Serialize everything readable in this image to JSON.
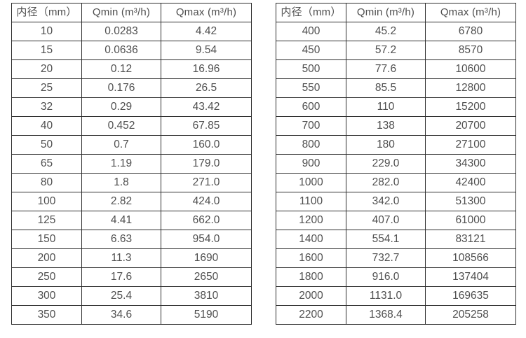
{
  "colors": {
    "border": "#2e2e2e",
    "text": "#4f4f4f",
    "background": "#ffffff"
  },
  "tables": [
    {
      "headers": [
        "内径（mm）",
        "Qmin (m³/h)",
        "Qmax (m³/h)"
      ],
      "rows": [
        [
          "10",
          "0.0283",
          "4.42"
        ],
        [
          "15",
          "0.0636",
          "9.54"
        ],
        [
          "20",
          "0.12",
          "16.96"
        ],
        [
          "25",
          "0.176",
          "26.5"
        ],
        [
          "32",
          "0.29",
          "43.42"
        ],
        [
          "40",
          "0.452",
          "67.85"
        ],
        [
          "50",
          "0.7",
          "160.0"
        ],
        [
          "65",
          "1.19",
          "179.0"
        ],
        [
          "80",
          "1.8",
          "271.0"
        ],
        [
          "100",
          "2.82",
          "424.0"
        ],
        [
          "125",
          "4.41",
          "662.0"
        ],
        [
          "150",
          "6.63",
          "954.0"
        ],
        [
          "200",
          "11.3",
          "1690"
        ],
        [
          "250",
          "17.6",
          "2650"
        ],
        [
          "300",
          "25.4",
          "3810"
        ],
        [
          "350",
          "34.6",
          "5190"
        ]
      ]
    },
    {
      "headers": [
        "内径（mm）",
        "Qmin (m³/h)",
        "Qmax (m³/h)"
      ],
      "rows": [
        [
          "400",
          "45.2",
          "6780"
        ],
        [
          "450",
          "57.2",
          "8570"
        ],
        [
          "500",
          "77.6",
          "10600"
        ],
        [
          "550",
          "85.5",
          "12800"
        ],
        [
          "600",
          "110",
          "15200"
        ],
        [
          "700",
          "138",
          "20700"
        ],
        [
          "800",
          "180",
          "27100"
        ],
        [
          "900",
          "229.0",
          "34300"
        ],
        [
          "1000",
          "282.0",
          "42400"
        ],
        [
          "1100",
          "342.0",
          "51300"
        ],
        [
          "1200",
          "407.0",
          "61000"
        ],
        [
          "1400",
          "554.1",
          "83121"
        ],
        [
          "1600",
          "732.7",
          "108566"
        ],
        [
          "1800",
          "916.0",
          "137404"
        ],
        [
          "2000",
          "1131.0",
          "169635"
        ],
        [
          "2200",
          "1368.4",
          "205258"
        ]
      ]
    }
  ]
}
